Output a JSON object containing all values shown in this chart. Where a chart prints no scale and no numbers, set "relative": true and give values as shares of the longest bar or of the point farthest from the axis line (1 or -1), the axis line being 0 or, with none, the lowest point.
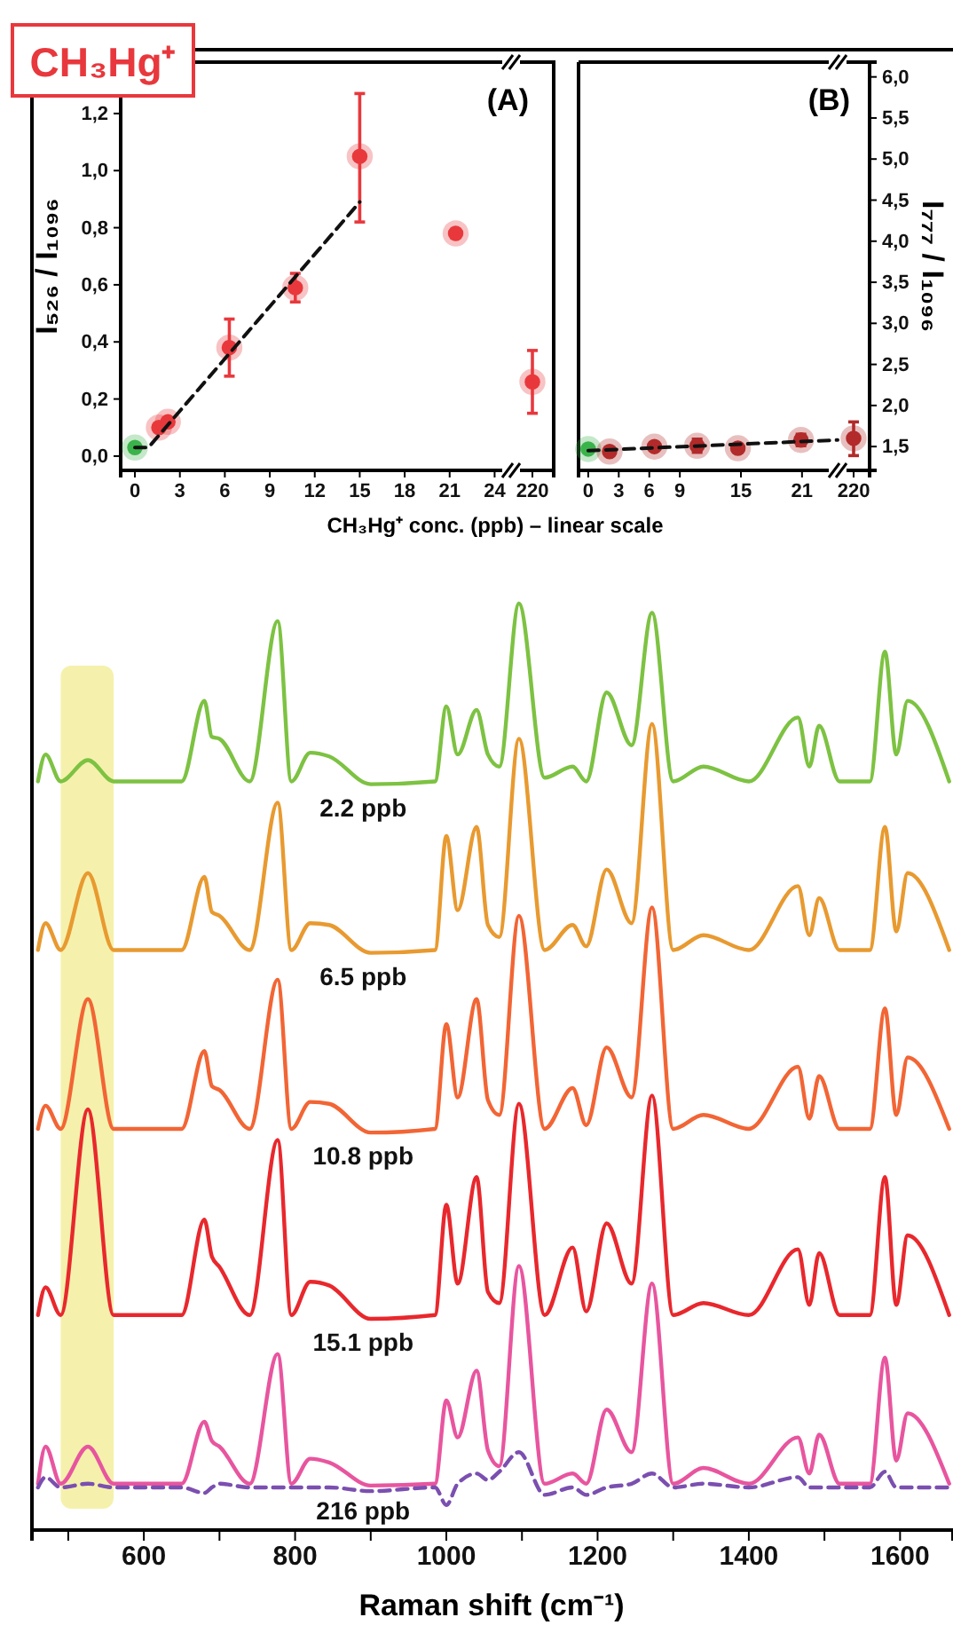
{
  "chart_data": [
    {
      "type": "scatter",
      "title": "(A)",
      "xlabel": "CH₃Hg⁺ conc. (ppb) – linear scale",
      "ylabel": "I₅₂₆ / I₁₀₉₆",
      "xlim": [
        -0.95,
        25.1
      ],
      "xticks": [
        0,
        3,
        6,
        9,
        12,
        15,
        18,
        21,
        24
      ],
      "ylim": [
        -0.05,
        1.38
      ],
      "yticks": [
        {
          "value": 0,
          "label": "0,0"
        },
        {
          "value": 0.2,
          "label": "0,2"
        },
        {
          "value": 0.4,
          "label": "0,4"
        },
        {
          "value": 0.6,
          "label": "0,6"
        },
        {
          "value": 0.8,
          "label": "0,8"
        },
        {
          "value": 1.0,
          "label": "1,0"
        },
        {
          "value": 1.2,
          "label": "1,2"
        }
      ],
      "series": [
        {
          "marker": "circle",
          "color": "#3cb44b",
          "x": [
            0
          ],
          "values": [
            0.03
          ]
        },
        {
          "marker": "circle",
          "color": "#e8383d",
          "x": [
            1.6,
            2.2,
            6.3,
            10.7,
            15.0,
            21.4
          ],
          "values": [
            0.1,
            0.12,
            0.38,
            0.59,
            1.05,
            0.78
          ],
          "errors": [
            null,
            null,
            [
              0.28,
              0.48
            ],
            [
              0.54,
              0.64
            ],
            [
              0.82,
              1.27
            ],
            null
          ]
        },
        {
          "type": "line",
          "color": "#111111",
          "line_style": "dashed",
          "x": [
            0,
            0.9,
            15
          ],
          "values": [
            0.03,
            0.03,
            0.89
          ]
        }
      ]
    },
    {
      "type": "scatter",
      "tick_labels": "x",
      "categories": [
        "220"
      ],
      "ylim": [
        -0.05,
        1.38
      ],
      "series": [
        {
          "marker": "circle",
          "color": "#e8383d",
          "x": [
            "220"
          ],
          "values": [
            0.26
          ],
          "errors": [
            [
              0.15,
              0.37
            ]
          ]
        }
      ]
    },
    {
      "type": "scatter",
      "title": "(B)",
      "tick_labels": "x",
      "xlim": [
        -0.95,
        24.5
      ],
      "xticks": [
        0,
        3,
        6,
        9,
        15,
        21
      ],
      "y2lim": [
        1.21,
        6.18
      ],
      "series": [
        {
          "marker": "circle",
          "color": "#3cb44b",
          "axis": "y2",
          "x": [
            0
          ],
          "values": [
            1.47
          ]
        },
        {
          "marker": "circle",
          "color": "#b22a2a",
          "axis": "y2",
          "x": [
            2.1,
            6.5,
            10.7,
            14.7,
            20.9
          ],
          "values": [
            1.44,
            1.5,
            1.51,
            1.48,
            1.58
          ],
          "errors": [
            null,
            null,
            [
              1.43,
              1.59
            ],
            null,
            [
              1.51,
              1.65
            ]
          ]
        },
        {
          "type": "line",
          "color": "#111111",
          "line_style": "dashed",
          "axis": "y2",
          "x": [
            0,
            24.5
          ],
          "values": [
            1.45,
            1.58
          ]
        }
      ]
    },
    {
      "type": "scatter",
      "categories": [
        "220"
      ],
      "y2lim": [
        1.21,
        6.18
      ],
      "y2label": "I₇₇₇ / I₁₀₉₆",
      "y2ticks": [
        {
          "value": 1.5,
          "label": "1,5"
        },
        {
          "value": 2.0,
          "label": "2,0"
        },
        {
          "value": 2.5,
          "label": "2,5"
        },
        {
          "value": 3.0,
          "label": "3,0"
        },
        {
          "value": 3.5,
          "label": "3,5"
        },
        {
          "value": 4.0,
          "label": "4,0"
        },
        {
          "value": 4.5,
          "label": "4,5"
        },
        {
          "value": 5.0,
          "label": "5,0"
        },
        {
          "value": 5.5,
          "label": "5,5"
        },
        {
          "value": 6.0,
          "label": "6,0"
        }
      ],
      "series": [
        {
          "marker": "circle",
          "color": "#b22a2a",
          "axis": "y2",
          "x": [
            "220"
          ],
          "values": [
            1.6
          ],
          "errors": [
            [
              1.39,
              1.8
            ]
          ]
        }
      ]
    },
    {
      "type": "line",
      "title": "CH₃Hg⁺",
      "xlabel": "Raman shift (cm⁻¹)",
      "relative": true,
      "xlim": [
        452,
        1670
      ],
      "xticks": [
        {
          "value": 500,
          "label": null
        },
        600,
        {
          "value": 700,
          "label": null
        },
        800,
        {
          "value": 900,
          "label": null
        },
        1000,
        {
          "value": 1100,
          "label": null
        },
        1200,
        {
          "value": 1300,
          "label": null
        },
        1400,
        {
          "value": 1500,
          "label": null
        },
        1600
      ],
      "bands": [
        {
          "axis": "x",
          "from": 490,
          "to": 560,
          "color": "#f3ef9e"
        }
      ],
      "x": [
        460,
        470,
        490,
        526,
        560,
        650,
        680,
        690,
        700,
        740,
        777,
        795,
        820,
        845,
        900,
        985,
        1000,
        1015,
        1040,
        1055,
        1070,
        1096,
        1130,
        1167,
        1185,
        1212,
        1245,
        1272,
        1300,
        1340,
        1400,
        1465,
        1480,
        1493,
        1520,
        1560,
        1580,
        1595,
        1610,
        1665
      ],
      "series": [
        {
          "name": "2.2 ppb",
          "color": "#7dc242",
          "values": [
            0.808,
            0.837,
            0.808,
            0.831,
            0.808,
            0.808,
            0.895,
            0.856,
            0.854,
            0.808,
            0.981,
            0.808,
            0.839,
            0.835,
            0.805,
            0.808,
            0.889,
            0.837,
            0.885,
            0.837,
            0.824,
            1.0,
            0.812,
            0.824,
            0.808,
            0.904,
            0.847,
            0.99,
            0.808,
            0.824,
            0.808,
            0.877,
            0.824,
            0.868,
            0.808,
            0.808,
            0.948,
            0.837,
            0.895,
            0.808
          ]
        },
        {
          "name": "6.5 ppb",
          "color": "#e89a30",
          "values": [
            0.626,
            0.655,
            0.626,
            0.709,
            0.626,
            0.626,
            0.705,
            0.667,
            0.663,
            0.626,
            0.785,
            0.626,
            0.655,
            0.653,
            0.623,
            0.626,
            0.749,
            0.669,
            0.759,
            0.653,
            0.64,
            0.854,
            0.626,
            0.653,
            0.63,
            0.713,
            0.655,
            0.87,
            0.626,
            0.642,
            0.626,
            0.695,
            0.642,
            0.682,
            0.626,
            0.626,
            0.759,
            0.646,
            0.709,
            0.626
          ]
        },
        {
          "name": "10.8 ppb",
          "color": "#f26535",
          "values": [
            0.433,
            0.458,
            0.433,
            0.573,
            0.433,
            0.433,
            0.517,
            0.479,
            0.475,
            0.433,
            0.594,
            0.433,
            0.462,
            0.46,
            0.429,
            0.433,
            0.546,
            0.467,
            0.573,
            0.464,
            0.448,
            0.663,
            0.433,
            0.477,
            0.437,
            0.521,
            0.467,
            0.672,
            0.433,
            0.448,
            0.433,
            0.5,
            0.444,
            0.49,
            0.433,
            0.433,
            0.563,
            0.448,
            0.51,
            0.433
          ]
        },
        {
          "name": "15.1 ppb",
          "color": "#e8282d",
          "values": [
            0.232,
            0.262,
            0.232,
            0.454,
            0.232,
            0.232,
            0.335,
            0.295,
            0.284,
            0.232,
            0.421,
            0.232,
            0.268,
            0.264,
            0.228,
            0.232,
            0.351,
            0.266,
            0.381,
            0.257,
            0.245,
            0.46,
            0.232,
            0.305,
            0.236,
            0.331,
            0.266,
            0.469,
            0.232,
            0.245,
            0.232,
            0.303,
            0.243,
            0.299,
            0.232,
            0.232,
            0.381,
            0.243,
            0.318,
            0.232
          ]
        },
        {
          "name": "216 ppb",
          "color": "#e8559f",
          "values": [
            0.05,
            0.09,
            0.05,
            0.09,
            0.05,
            0.05,
            0.117,
            0.096,
            0.09,
            0.05,
            0.19,
            0.05,
            0.077,
            0.073,
            0.048,
            0.05,
            0.14,
            0.1,
            0.172,
            0.086,
            0.069,
            0.285,
            0.05,
            0.061,
            0.05,
            0.13,
            0.084,
            0.266,
            0.05,
            0.067,
            0.05,
            0.1,
            0.061,
            0.103,
            0.05,
            0.05,
            0.186,
            0.075,
            0.126,
            0.05
          ]
        },
        {
          "color": "#7b4fb0",
          "line_style": "dashed",
          "values": [
            0.046,
            0.057,
            0.046,
            0.05,
            0.046,
            0.046,
            0.04,
            0.046,
            0.05,
            0.046,
            0.046,
            0.046,
            0.046,
            0.046,
            0.042,
            0.046,
            0.027,
            0.05,
            0.061,
            0.054,
            0.063,
            0.084,
            0.038,
            0.046,
            0.038,
            0.046,
            0.05,
            0.061,
            0.046,
            0.05,
            0.046,
            0.057,
            0.046,
            0.046,
            0.046,
            0.046,
            0.063,
            0.046,
            0.046,
            0.046
          ]
        }
      ]
    }
  ]
}
